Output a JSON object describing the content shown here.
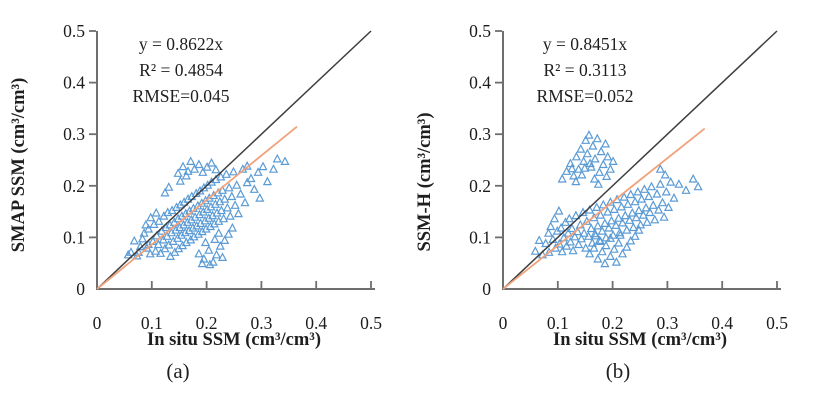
{
  "figure_background": "#ffffff",
  "colors": {
    "marker": "#5b9bd5",
    "regression_line": "#f0a27c",
    "identity_line": "#3e3e3e",
    "axis": "#6e6e6e",
    "text": "#1c1c1c"
  },
  "chart_data": [
    {
      "type": "scatter",
      "caption": "(a)",
      "xlabel": "In situ SSM (cm³/cm³)",
      "ylabel": "SMAP SSM (cm³/cm³)",
      "xlim": [
        0,
        0.5
      ],
      "ylim": [
        0,
        0.5
      ],
      "x_ticks": [
        "0",
        "0.1",
        "0.2",
        "0.3",
        "0.4",
        "0.5"
      ],
      "y_ticks": [
        "0",
        "0.1",
        "0.2",
        "0.3",
        "0.4",
        "0.5"
      ],
      "grid": false,
      "annotations": [
        "y = 0.8622x",
        "R² = 0.4854",
        "RMSE=0.045"
      ],
      "marker": {
        "shape": "triangle-open",
        "color": "#5b9bd5"
      },
      "identity_line": {
        "from": [
          0,
          0
        ],
        "to": [
          0.5,
          0.5
        ],
        "color": "#3e3e3e"
      },
      "regression": {
        "slope": 0.8622,
        "x_start": 0,
        "x_end": 0.365,
        "color": "#f0a27c"
      },
      "points": [
        [
          0.062,
          0.071
        ],
        [
          0.068,
          0.093
        ],
        [
          0.073,
          0.064
        ],
        [
          0.079,
          0.082
        ],
        [
          0.086,
          0.108
        ],
        [
          0.091,
          0.079
        ],
        [
          0.094,
          0.116
        ],
        [
          0.097,
          0.068
        ],
        [
          0.102,
          0.092
        ],
        [
          0.104,
          0.125
        ],
        [
          0.107,
          0.073
        ],
        [
          0.109,
          0.103
        ],
        [
          0.112,
          0.086
        ],
        [
          0.113,
          0.131
        ],
        [
          0.116,
          0.069
        ],
        [
          0.118,
          0.112
        ],
        [
          0.121,
          0.095
        ],
        [
          0.122,
          0.141
        ],
        [
          0.124,
          0.078
        ],
        [
          0.126,
          0.119
        ],
        [
          0.128,
          0.102
        ],
        [
          0.129,
          0.148
        ],
        [
          0.131,
          0.085
        ],
        [
          0.133,
          0.124
        ],
        [
          0.134,
          0.063
        ],
        [
          0.136,
          0.109
        ],
        [
          0.137,
          0.152
        ],
        [
          0.139,
          0.092
        ],
        [
          0.141,
          0.129
        ],
        [
          0.142,
          0.071
        ],
        [
          0.144,
          0.114
        ],
        [
          0.145,
          0.158
        ],
        [
          0.147,
          0.098
        ],
        [
          0.148,
          0.136
        ],
        [
          0.149,
          0.078
        ],
        [
          0.151,
          0.119
        ],
        [
          0.152,
          0.163
        ],
        [
          0.154,
          0.104
        ],
        [
          0.155,
          0.141
        ],
        [
          0.156,
          0.084
        ],
        [
          0.158,
          0.124
        ],
        [
          0.159,
          0.168
        ],
        [
          0.161,
          0.109
        ],
        [
          0.162,
          0.146
        ],
        [
          0.163,
          0.09
        ],
        [
          0.165,
          0.129
        ],
        [
          0.166,
          0.174
        ],
        [
          0.168,
          0.113
        ],
        [
          0.169,
          0.151
        ],
        [
          0.171,
          0.095
        ],
        [
          0.172,
          0.134
        ],
        [
          0.173,
          0.179
        ],
        [
          0.175,
          0.118
        ],
        [
          0.176,
          0.156
        ],
        [
          0.177,
          0.101
        ],
        [
          0.179,
          0.139
        ],
        [
          0.181,
          0.185
        ],
        [
          0.182,
          0.122
        ],
        [
          0.184,
          0.161
        ],
        [
          0.185,
          0.106
        ],
        [
          0.187,
          0.144
        ],
        [
          0.188,
          0.19
        ],
        [
          0.189,
          0.127
        ],
        [
          0.191,
          0.166
        ],
        [
          0.192,
          0.111
        ],
        [
          0.194,
          0.149
        ],
        [
          0.195,
          0.196
        ],
        [
          0.197,
          0.132
        ],
        [
          0.198,
          0.171
        ],
        [
          0.199,
          0.116
        ],
        [
          0.201,
          0.154
        ],
        [
          0.202,
          0.201
        ],
        [
          0.204,
          0.137
        ],
        [
          0.205,
          0.176
        ],
        [
          0.207,
          0.121
        ],
        [
          0.208,
          0.159
        ],
        [
          0.209,
          0.207
        ],
        [
          0.211,
          0.142
        ],
        [
          0.213,
          0.181
        ],
        [
          0.214,
          0.126
        ],
        [
          0.216,
          0.164
        ],
        [
          0.217,
          0.212
        ],
        [
          0.219,
          0.147
        ],
        [
          0.221,
          0.186
        ],
        [
          0.222,
          0.131
        ],
        [
          0.224,
          0.169
        ],
        [
          0.226,
          0.217
        ],
        [
          0.227,
          0.152
        ],
        [
          0.229,
          0.191
        ],
        [
          0.231,
          0.136
        ],
        [
          0.233,
          0.174
        ],
        [
          0.236,
          0.222
        ],
        [
          0.238,
          0.157
        ],
        [
          0.241,
          0.196
        ],
        [
          0.243,
          0.141
        ],
        [
          0.246,
          0.179
        ],
        [
          0.249,
          0.227
        ],
        [
          0.252,
          0.162
        ],
        [
          0.255,
          0.201
        ],
        [
          0.258,
          0.146
        ],
        [
          0.262,
          0.184
        ],
        [
          0.266,
          0.232
        ],
        [
          0.27,
          0.167
        ],
        [
          0.274,
          0.206
        ],
        [
          0.186,
          0.068
        ],
        [
          0.195,
          0.058
        ],
        [
          0.204,
          0.075
        ],
        [
          0.212,
          0.052
        ],
        [
          0.218,
          0.066
        ],
        [
          0.206,
          0.047
        ],
        [
          0.225,
          0.083
        ],
        [
          0.198,
          0.09
        ],
        [
          0.233,
          0.094
        ],
        [
          0.229,
          0.061
        ],
        [
          0.215,
          0.096
        ],
        [
          0.192,
          0.049
        ],
        [
          0.24,
          0.106
        ],
        [
          0.247,
          0.118
        ],
        [
          0.222,
          0.108
        ],
        [
          0.148,
          0.224
        ],
        [
          0.157,
          0.237
        ],
        [
          0.166,
          0.228
        ],
        [
          0.171,
          0.247
        ],
        [
          0.178,
          0.232
        ],
        [
          0.186,
          0.241
        ],
        [
          0.193,
          0.226
        ],
        [
          0.152,
          0.209
        ],
        [
          0.201,
          0.236
        ],
        [
          0.209,
          0.244
        ],
        [
          0.163,
          0.219
        ],
        [
          0.217,
          0.231
        ],
        [
          0.131,
          0.197
        ],
        [
          0.124,
          0.186
        ],
        [
          0.281,
          0.214
        ],
        [
          0.287,
          0.193
        ],
        [
          0.294,
          0.226
        ],
        [
          0.303,
          0.237
        ],
        [
          0.311,
          0.208
        ],
        [
          0.329,
          0.252
        ],
        [
          0.343,
          0.247
        ],
        [
          0.322,
          0.232
        ],
        [
          0.274,
          0.238
        ],
        [
          0.297,
          0.176
        ],
        [
          0.057,
          0.066
        ],
        [
          0.083,
          0.097
        ],
        [
          0.089,
          0.124
        ],
        [
          0.098,
          0.138
        ],
        [
          0.076,
          0.071
        ],
        [
          0.108,
          0.147
        ],
        [
          0.094,
          0.086
        ]
      ]
    },
    {
      "type": "scatter",
      "caption": "(b)",
      "xlabel": "In situ SSM (cm³/cm³)",
      "ylabel": "SSM-H (cm³/cm³)",
      "xlim": [
        0,
        0.5
      ],
      "ylim": [
        0,
        0.5
      ],
      "x_ticks": [
        "0",
        "0.1",
        "0.2",
        "0.3",
        "0.4",
        "0.5"
      ],
      "y_ticks": [
        "0",
        "0.1",
        "0.2",
        "0.3",
        "0.4",
        "0.5"
      ],
      "grid": false,
      "annotations": [
        "y = 0.8451x",
        "R² = 0.3113",
        "RMSE=0.052"
      ],
      "marker": {
        "shape": "triangle-open",
        "color": "#5b9bd5"
      },
      "identity_line": {
        "from": [
          0,
          0
        ],
        "to": [
          0.5,
          0.5
        ],
        "color": "#3e3e3e"
      },
      "regression": {
        "slope": 0.8451,
        "x_start": 0,
        "x_end": 0.368,
        "color": "#f0a27c"
      },
      "points": [
        [
          0.072,
          0.066
        ],
        [
          0.078,
          0.088
        ],
        [
          0.084,
          0.071
        ],
        [
          0.091,
          0.096
        ],
        [
          0.096,
          0.079
        ],
        [
          0.099,
          0.112
        ],
        [
          0.103,
          0.087
        ],
        [
          0.106,
          0.118
        ],
        [
          0.108,
          0.072
        ],
        [
          0.111,
          0.099
        ],
        [
          0.114,
          0.129
        ],
        [
          0.116,
          0.083
        ],
        [
          0.119,
          0.108
        ],
        [
          0.121,
          0.136
        ],
        [
          0.123,
          0.091
        ],
        [
          0.126,
          0.117
        ],
        [
          0.128,
          0.074
        ],
        [
          0.131,
          0.101
        ],
        [
          0.133,
          0.142
        ],
        [
          0.136,
          0.111
        ],
        [
          0.138,
          0.086
        ],
        [
          0.141,
          0.124
        ],
        [
          0.143,
          0.097
        ],
        [
          0.146,
          0.148
        ],
        [
          0.148,
          0.108
        ],
        [
          0.151,
          0.079
        ],
        [
          0.153,
          0.131
        ],
        [
          0.156,
          0.102
        ],
        [
          0.158,
          0.153
        ],
        [
          0.161,
          0.117
        ],
        [
          0.163,
          0.089
        ],
        [
          0.166,
          0.138
        ],
        [
          0.168,
          0.107
        ],
        [
          0.171,
          0.158
        ],
        [
          0.173,
          0.122
        ],
        [
          0.176,
          0.094
        ],
        [
          0.178,
          0.143
        ],
        [
          0.181,
          0.112
        ],
        [
          0.183,
          0.163
        ],
        [
          0.186,
          0.127
        ],
        [
          0.188,
          0.099
        ],
        [
          0.191,
          0.149
        ],
        [
          0.193,
          0.118
        ],
        [
          0.196,
          0.168
        ],
        [
          0.198,
          0.132
        ],
        [
          0.201,
          0.104
        ],
        [
          0.203,
          0.154
        ],
        [
          0.206,
          0.123
        ],
        [
          0.208,
          0.173
        ],
        [
          0.211,
          0.137
        ],
        [
          0.213,
          0.109
        ],
        [
          0.216,
          0.159
        ],
        [
          0.218,
          0.128
        ],
        [
          0.221,
          0.178
        ],
        [
          0.223,
          0.142
        ],
        [
          0.226,
          0.114
        ],
        [
          0.228,
          0.164
        ],
        [
          0.231,
          0.133
        ],
        [
          0.233,
          0.183
        ],
        [
          0.236,
          0.147
        ],
        [
          0.238,
          0.119
        ],
        [
          0.241,
          0.169
        ],
        [
          0.243,
          0.138
        ],
        [
          0.246,
          0.188
        ],
        [
          0.248,
          0.152
        ],
        [
          0.251,
          0.124
        ],
        [
          0.253,
          0.174
        ],
        [
          0.256,
          0.143
        ],
        [
          0.258,
          0.193
        ],
        [
          0.261,
          0.157
        ],
        [
          0.263,
          0.129
        ],
        [
          0.266,
          0.179
        ],
        [
          0.268,
          0.148
        ],
        [
          0.271,
          0.198
        ],
        [
          0.274,
          0.162
        ],
        [
          0.277,
          0.134
        ],
        [
          0.281,
          0.184
        ],
        [
          0.284,
          0.153
        ],
        [
          0.287,
          0.203
        ],
        [
          0.291,
          0.167
        ],
        [
          0.294,
          0.139
        ],
        [
          0.298,
          0.188
        ],
        [
          0.302,
          0.158
        ],
        [
          0.306,
          0.207
        ],
        [
          0.158,
          0.068
        ],
        [
          0.166,
          0.079
        ],
        [
          0.173,
          0.058
        ],
        [
          0.181,
          0.072
        ],
        [
          0.188,
          0.084
        ],
        [
          0.196,
          0.063
        ],
        [
          0.203,
          0.077
        ],
        [
          0.211,
          0.089
        ],
        [
          0.218,
          0.068
        ],
        [
          0.226,
          0.081
        ],
        [
          0.233,
          0.093
        ],
        [
          0.178,
          0.092
        ],
        [
          0.169,
          0.103
        ],
        [
          0.186,
          0.049
        ],
        [
          0.207,
          0.052
        ],
        [
          0.196,
          0.098
        ],
        [
          0.214,
          0.104
        ],
        [
          0.241,
          0.102
        ],
        [
          0.248,
          0.114
        ],
        [
          0.108,
          0.213
        ],
        [
          0.116,
          0.228
        ],
        [
          0.123,
          0.243
        ],
        [
          0.129,
          0.219
        ],
        [
          0.134,
          0.256
        ],
        [
          0.138,
          0.232
        ],
        [
          0.142,
          0.271
        ],
        [
          0.147,
          0.247
        ],
        [
          0.151,
          0.288
        ],
        [
          0.154,
          0.262
        ],
        [
          0.157,
          0.298
        ],
        [
          0.161,
          0.236
        ],
        [
          0.164,
          0.277
        ],
        [
          0.168,
          0.252
        ],
        [
          0.172,
          0.291
        ],
        [
          0.176,
          0.226
        ],
        [
          0.179,
          0.266
        ],
        [
          0.183,
          0.241
        ],
        [
          0.187,
          0.281
        ],
        [
          0.191,
          0.256
        ],
        [
          0.196,
          0.232
        ],
        [
          0.201,
          0.247
        ],
        [
          0.126,
          0.233
        ],
        [
          0.144,
          0.221
        ],
        [
          0.159,
          0.243
        ],
        [
          0.133,
          0.208
        ],
        [
          0.149,
          0.234
        ],
        [
          0.167,
          0.213
        ],
        [
          0.174,
          0.203
        ],
        [
          0.189,
          0.218
        ],
        [
          0.312,
          0.176
        ],
        [
          0.321,
          0.203
        ],
        [
          0.334,
          0.191
        ],
        [
          0.347,
          0.213
        ],
        [
          0.356,
          0.198
        ],
        [
          0.296,
          0.221
        ],
        [
          0.287,
          0.232
        ],
        [
          0.059,
          0.073
        ],
        [
          0.066,
          0.094
        ],
        [
          0.087,
          0.121
        ],
        [
          0.094,
          0.136
        ],
        [
          0.102,
          0.151
        ],
        [
          0.083,
          0.108
        ]
      ]
    }
  ]
}
